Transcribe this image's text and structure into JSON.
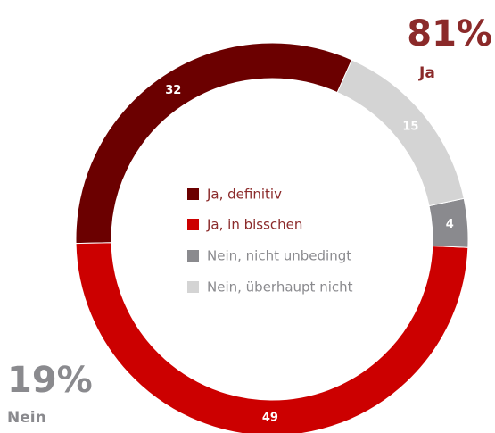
{
  "chart_data": {
    "type": "pie",
    "categories": [
      "Ja, definitiv",
      "Ja, in bisschen",
      "Nein, nicht unbedingt",
      "Nein, überhaupt nicht"
    ],
    "values": [
      32,
      49,
      4,
      15
    ],
    "colors": [
      "#6b0000",
      "#cc0000",
      "#8a8a8e",
      "#d4d4d4"
    ],
    "groups": [
      {
        "percent": "81%",
        "name": "Ja"
      },
      {
        "percent": "19%",
        "name": "Nein"
      }
    ]
  }
}
